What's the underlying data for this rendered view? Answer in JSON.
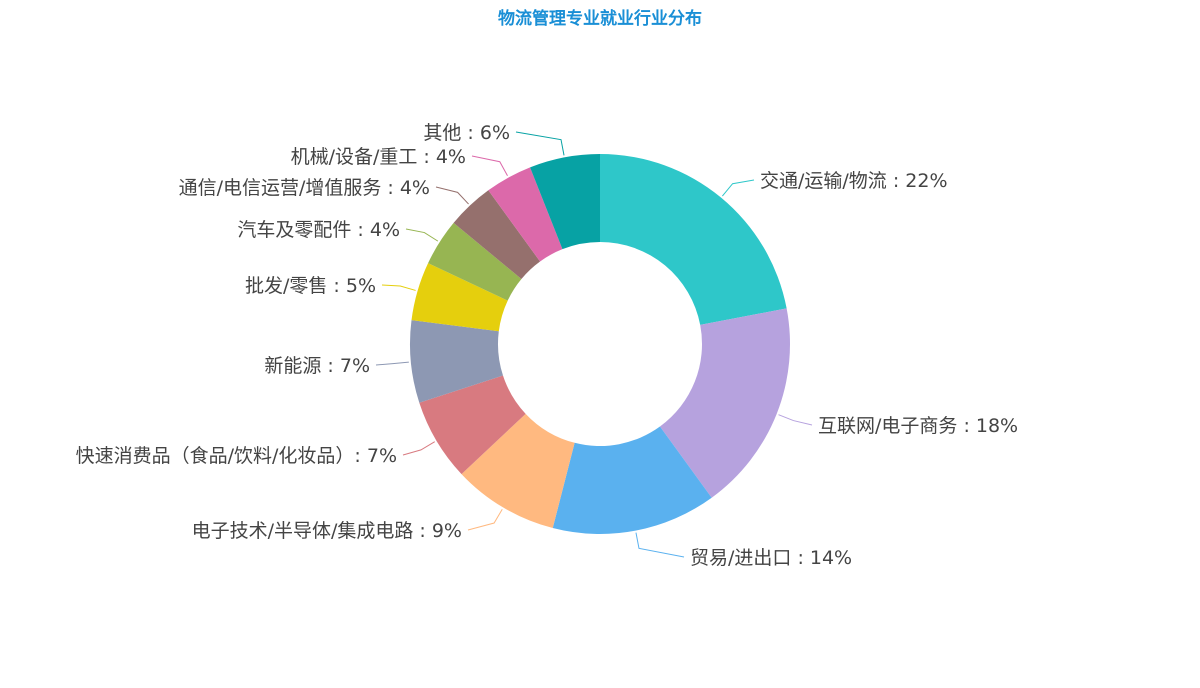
{
  "chart_data": {
    "type": "pie",
    "variant": "donut",
    "title": "物流管理专业就业行业分布",
    "slices": [
      {
        "name": "交通/运输/物流",
        "value": 22,
        "label": "交通/运输/物流 : 22%",
        "color": "#2ec7c9"
      },
      {
        "name": "互联网/电子商务",
        "value": 18,
        "label": "互联网/电子商务 : 18%",
        "color": "#b6a2de"
      },
      {
        "name": "贸易/进出口",
        "value": 14,
        "label": "贸易/进出口 : 14%",
        "color": "#5ab1ef"
      },
      {
        "name": "电子技术/半导体/集成电路",
        "value": 9,
        "label": "电子技术/半导体/集成电路 : 9%",
        "color": "#ffb980"
      },
      {
        "name": "快速消费品（食品/饮料/化妆品）",
        "value": 7,
        "label": "快速消费品（食品/饮料/化妆品）: 7%",
        "color": "#d87a80"
      },
      {
        "name": "新能源",
        "value": 7,
        "label": "新能源 : 7%",
        "color": "#8d98b3"
      },
      {
        "name": "批发/零售",
        "value": 5,
        "label": "批发/零售 : 5%",
        "color": "#e5cf0d"
      },
      {
        "name": "汽车及零配件",
        "value": 4,
        "label": "汽车及零配件 : 4%",
        "color": "#97b552"
      },
      {
        "name": "通信/电信运营/增值服务",
        "value": 4,
        "label": "通信/电信运营/增值服务 : 4%",
        "color": "#95706d"
      },
      {
        "name": "机械/设备/重工",
        "value": 4,
        "label": "机械/设备/重工 : 4%",
        "color": "#dc69aa"
      },
      {
        "name": "其他",
        "value": 6,
        "label": "其他 : 6%",
        "color": "#07a2a4"
      }
    ],
    "legend": "none",
    "label_position": "outside"
  }
}
